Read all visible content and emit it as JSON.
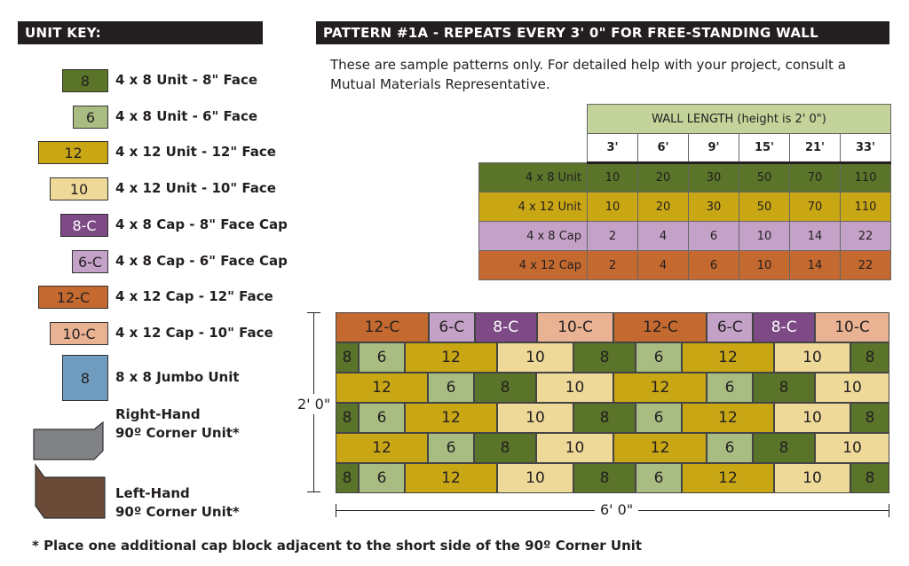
{
  "unit_key": {
    "title": "UNIT KEY:",
    "items": [
      {
        "code": "8",
        "label": "4 x 8 Unit - 8\" Face",
        "color": "#5a7429"
      },
      {
        "code": "6",
        "label": "4 x 8 Unit - 6\" Face",
        "color": "#a9bd83"
      },
      {
        "code": "12",
        "label": "4 x 12 Unit - 12\" Face",
        "color": "#c9a614"
      },
      {
        "code": "10",
        "label": "4 x 12 Unit - 10\" Face",
        "color": "#eed999"
      },
      {
        "code": "8-C",
        "label": "4 x 8 Cap - 8\" Face Cap",
        "color": "#7d4a86"
      },
      {
        "code": "6-C",
        "label": "4 x 8 Cap - 6\" Face Cap",
        "color": "#c4a2c8"
      },
      {
        "code": "12-C",
        "label": "4 x 12 Cap - 12\" Face",
        "color": "#c4692f"
      },
      {
        "code": "10-C",
        "label": "4 x 12 Cap - 10\" Face",
        "color": "#e9b293"
      },
      {
        "code": "8",
        "label": "8 x 8 Jumbo Unit",
        "color": "#6f9cbf"
      }
    ],
    "right_corner": {
      "line1": "Right-Hand",
      "line2": "90º Corner Unit*",
      "color": "#808285"
    },
    "left_corner": {
      "line1": "Left-Hand",
      "line2": "90º Corner Unit*",
      "color": "#6b4a38"
    }
  },
  "pattern": {
    "title": "PATTERN #1A - REPEATS EVERY 3' 0\" FOR FREE-STANDING WALL",
    "intro": "These are sample patterns only. For detailed help with your project, consult a Mutual Materials Representative."
  },
  "table": {
    "header": "WALL LENGTH  (height is 2' 0\")",
    "columns": [
      "3'",
      "6'",
      "9'",
      "15'",
      "21'",
      "33'"
    ],
    "rows": [
      {
        "label": "4 x 8 Unit",
        "values": [
          "10",
          "20",
          "30",
          "50",
          "70",
          "110"
        ],
        "color": "#5a7429"
      },
      {
        "label": "4 x 12 Unit",
        "values": [
          "10",
          "20",
          "30",
          "50",
          "70",
          "110"
        ],
        "color": "#c9a614"
      },
      {
        "label": "4 x 8 Cap",
        "values": [
          "2",
          "4",
          "6",
          "10",
          "14",
          "22"
        ],
        "color": "#c4a2c8"
      },
      {
        "label": "4 x 12 Cap",
        "values": [
          "2",
          "4",
          "6",
          "10",
          "14",
          "22"
        ],
        "color": "#c4692f"
      }
    ]
  },
  "wall": {
    "height_label": "2' 0\"",
    "width_label": "6' 0\"",
    "rows": [
      [
        "12-C",
        "6-C",
        "8-C",
        "10-C",
        "12-C",
        "6-C",
        "8-C",
        "10-C"
      ],
      [
        "8",
        "6",
        "12",
        "10",
        "8",
        "6",
        "12",
        "10",
        "8"
      ],
      [
        "12",
        "6",
        "8",
        "10",
        "12",
        "6",
        "8",
        "10"
      ],
      [
        "8",
        "6",
        "12",
        "10",
        "8",
        "6",
        "12",
        "10",
        "8"
      ],
      [
        "12",
        "6",
        "8",
        "10",
        "12",
        "6",
        "8",
        "10"
      ],
      [
        "8",
        "6",
        "12",
        "10",
        "8",
        "6",
        "12",
        "10",
        "8"
      ]
    ]
  },
  "footnote": "* Place one additional cap block adjacent to the short side of the 90º Corner Unit"
}
